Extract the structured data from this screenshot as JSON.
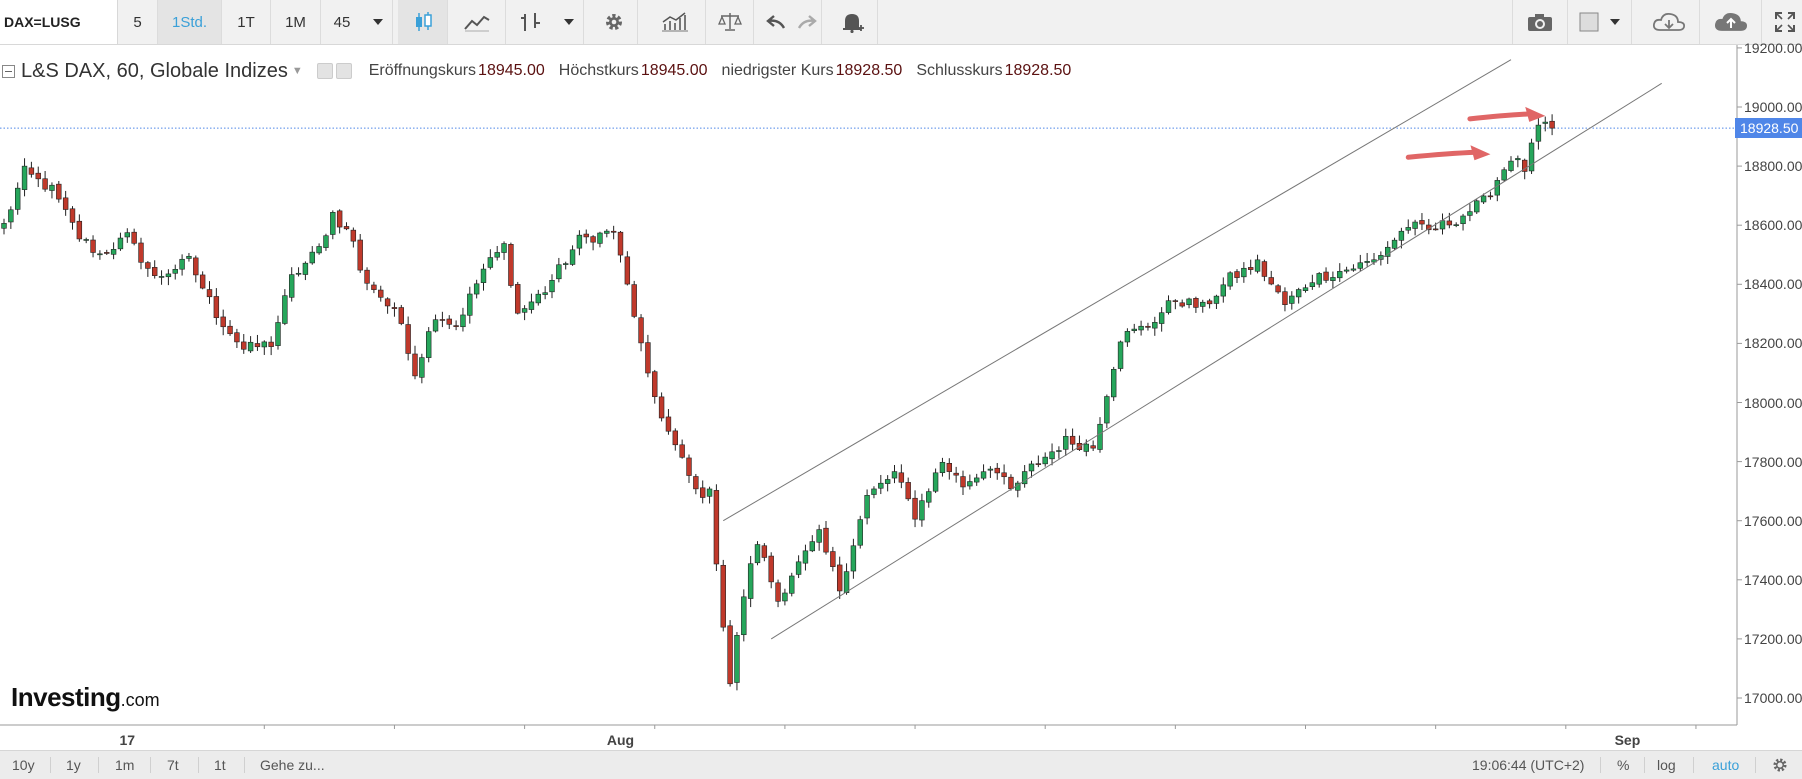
{
  "toolbar": {
    "symbol": "DAX=LUSG",
    "interval_buttons": [
      "5",
      "1Std.",
      "1T",
      "1M",
      "45"
    ],
    "active_interval": "1Std."
  },
  "legend": {
    "title": "L&S DAX, 60, Globale Indizes",
    "open_label": "Eröffnungskurs",
    "open_value": "18945.00",
    "high_label": "Höchstkurs",
    "high_value": "18945.00",
    "low_label": "niedrigster Kurs",
    "low_value": "18928.50",
    "close_label": "Schlusskurs",
    "close_value": "18928.50"
  },
  "price_axis": {
    "labels": [
      "19200.00",
      "19000.00",
      "18800.00",
      "18600.00",
      "18400.00",
      "18200.00",
      "18000.00",
      "17800.00",
      "17600.00",
      "17400.00",
      "17200.00",
      "17000.00"
    ],
    "current_price": "18928.50"
  },
  "time_axis": {
    "labels": [
      "17",
      "Aug",
      "Sep"
    ]
  },
  "logo": {
    "main": "Investing",
    "suffix": ".com"
  },
  "bottombar": {
    "ranges": [
      "10y",
      "1y",
      "1m",
      "7t",
      "1t"
    ],
    "goto": "Gehe zu...",
    "clock": "19:06:44 (UTC+2)",
    "percent": "%",
    "log": "log",
    "auto": "auto"
  },
  "colors": {
    "up": "#26a65b",
    "down": "#c0392b",
    "price_line": "#4f86e8",
    "arrow": "#e06666"
  },
  "icons": [
    "candles-icon",
    "line-style-icon",
    "indicators-icon",
    "gear-icon",
    "compare-icon",
    "balance-icon",
    "undo-icon",
    "redo-icon",
    "alert-icon",
    "camera-icon",
    "template-icon",
    "cloud-download-icon",
    "cloud-upload-icon",
    "fullscreen-icon"
  ],
  "chart_data": {
    "type": "candlestick",
    "symbol": "L&S DAX",
    "interval": "60",
    "y_range": [
      16950,
      19200
    ],
    "x_ticks": [
      {
        "index": 18,
        "label": "17"
      },
      {
        "index": 90,
        "label": "Aug"
      },
      {
        "index": 237,
        "label": "Sep"
      }
    ],
    "trend_channel": {
      "upper": [
        [
          105,
          17600
        ],
        [
          220,
          19160
        ]
      ],
      "lower": [
        [
          112,
          17200
        ],
        [
          242,
          19080
        ]
      ]
    },
    "current_price": 18928.5,
    "annotations": [
      "arrow pointing at 18840",
      "arrow pointing at 18970"
    ],
    "close_anchors": [
      [
        0,
        18600
      ],
      [
        3,
        18780
      ],
      [
        7,
        18720
      ],
      [
        11,
        18560
      ],
      [
        14,
        18500
      ],
      [
        18,
        18560
      ],
      [
        22,
        18420
      ],
      [
        27,
        18480
      ],
      [
        31,
        18300
      ],
      [
        35,
        18180
      ],
      [
        39,
        18200
      ],
      [
        42,
        18420
      ],
      [
        46,
        18520
      ],
      [
        48,
        18640
      ],
      [
        51,
        18550
      ],
      [
        52,
        18440
      ],
      [
        55,
        18360
      ],
      [
        58,
        18270
      ],
      [
        60,
        18100
      ],
      [
        63,
        18300
      ],
      [
        66,
        18260
      ],
      [
        70,
        18450
      ],
      [
        73,
        18530
      ],
      [
        75,
        18300
      ],
      [
        79,
        18380
      ],
      [
        84,
        18550
      ],
      [
        89,
        18580
      ],
      [
        92,
        18300
      ],
      [
        94,
        18080
      ],
      [
        97,
        17900
      ],
      [
        101,
        17700
      ],
      [
        103,
        17690
      ],
      [
        105,
        17250
      ],
      [
        106,
        17050
      ],
      [
        108,
        17350
      ],
      [
        110,
        17530
      ],
      [
        113,
        17330
      ],
      [
        115,
        17420
      ],
      [
        119,
        17550
      ],
      [
        122,
        17370
      ],
      [
        126,
        17680
      ],
      [
        130,
        17760
      ],
      [
        133,
        17620
      ],
      [
        137,
        17800
      ],
      [
        140,
        17720
      ],
      [
        144,
        17790
      ],
      [
        147,
        17700
      ],
      [
        150,
        17780
      ],
      [
        155,
        17870
      ],
      [
        159,
        17850
      ],
      [
        163,
        18220
      ],
      [
        167,
        18260
      ],
      [
        171,
        18350
      ],
      [
        175,
        18320
      ],
      [
        179,
        18420
      ],
      [
        183,
        18470
      ],
      [
        187,
        18330
      ],
      [
        191,
        18420
      ],
      [
        196,
        18450
      ],
      [
        200,
        18480
      ],
      [
        205,
        18600
      ],
      [
        208,
        18580
      ],
      [
        212,
        18620
      ],
      [
        216,
        18680
      ],
      [
        220,
        18830
      ],
      [
        222,
        18790
      ],
      [
        224,
        18930
      ],
      [
        226,
        18928.5
      ]
    ]
  }
}
